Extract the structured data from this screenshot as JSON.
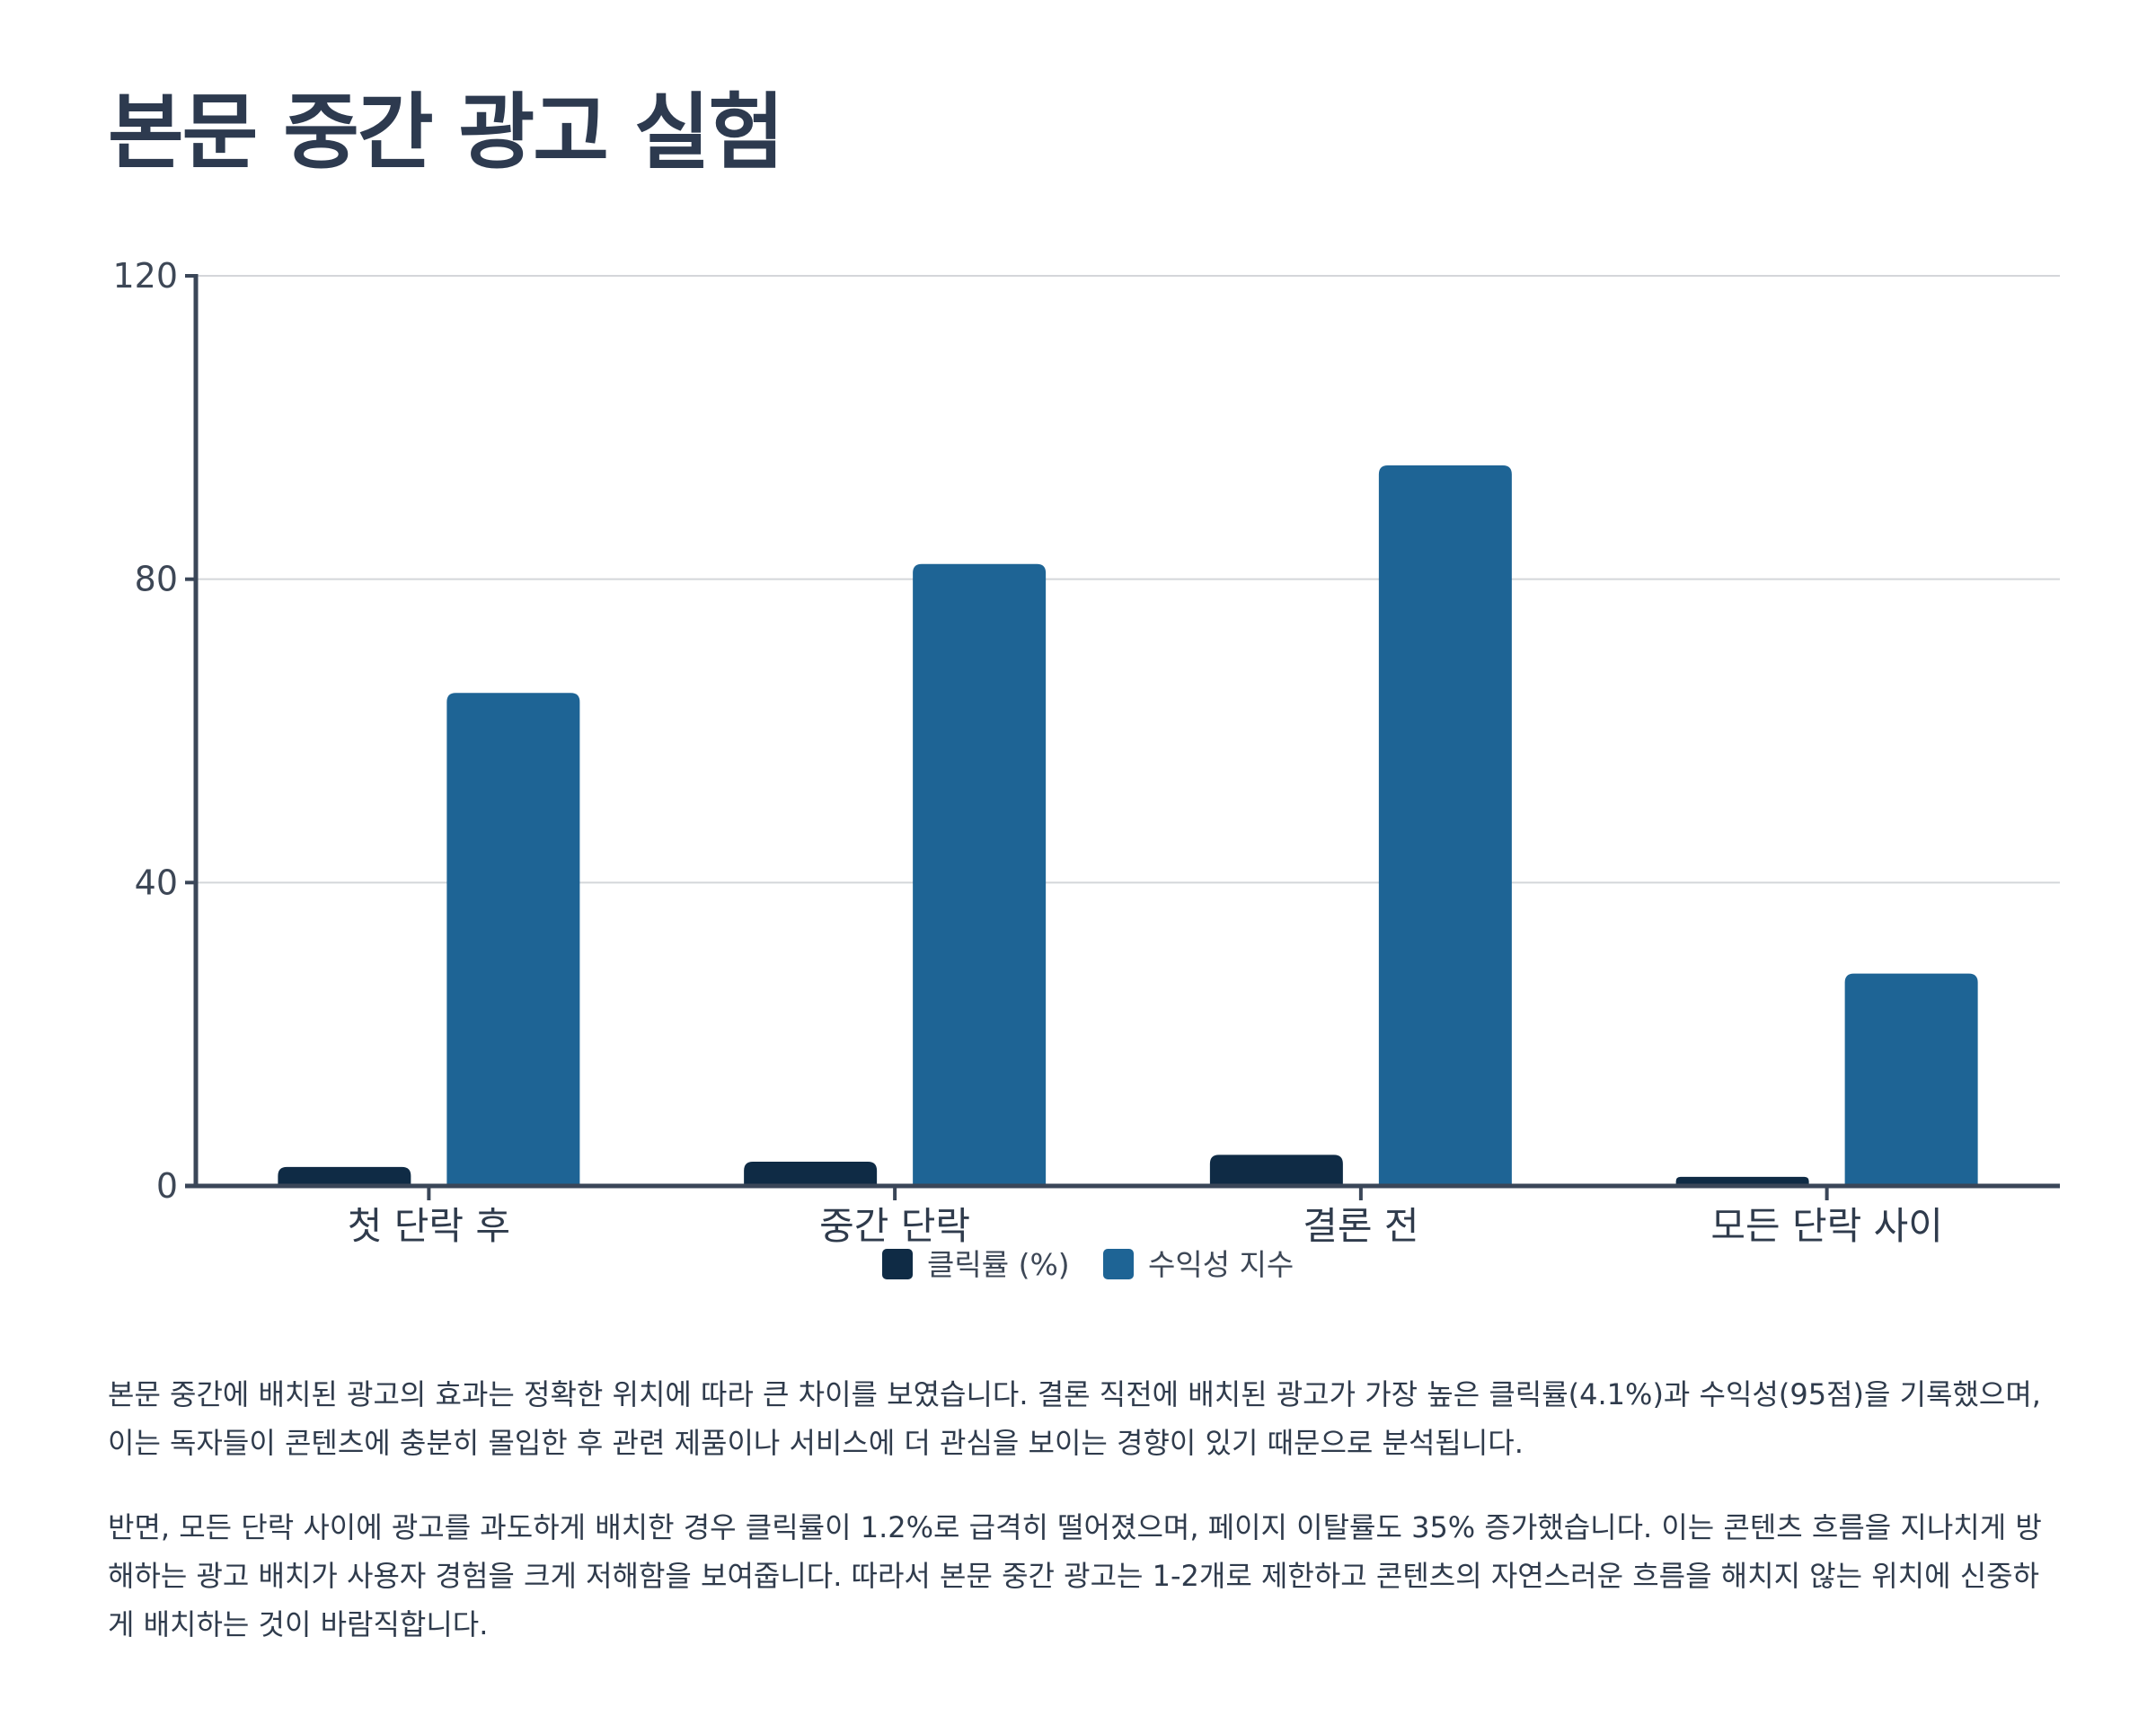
{
  "title": "본문 중간 광고 실험",
  "chart_data": {
    "type": "bar",
    "categories": [
      "첫 단락 후",
      "중간 단락",
      "결론 전",
      "모든 단락 사이"
    ],
    "series": [
      {
        "name": "클릭률 (%)",
        "values": [
          2.5,
          3.2,
          4.1,
          1.2
        ],
        "color": "#0f2b45"
      },
      {
        "name": "수익성 지수",
        "values": [
          65,
          82,
          95,
          28
        ],
        "color": "#1e6495"
      }
    ],
    "ylim": [
      0,
      120
    ],
    "yticks": [
      0,
      40,
      80,
      120
    ],
    "grid": true,
    "legend_position": "bottom-center"
  },
  "paragraphs": [
    "본문 중간에 배치된 광고의 효과는 정확한 위치에 따라 큰 차이를 보였습니다. 결론 직전에 배치된 광고가 가장 높은 클릭률(4.1%)과 수익성(95점)을 기록했으며, 이는 독자들이 콘텐츠에 충분히 몰입한 후 관련 제품이나 서비스에 더 관심을 보이는 경향이 있기 때문으로 분석됩니다.",
    "반면, 모든 단락 사이에 광고를 과도하게 배치한 경우 클릭률이 1.2%로 급격히 떨어졌으며, 페이지 이탈률도 35% 증가했습니다. 이는 콘텐츠 흐름을 지나치게 방해하는 광고 배치가 사용자 경험을 크게 저해함을 보여줍니다. 따라서 본문 중간 광고는 1-2개로 제한하고 콘텐츠의 자연스러운 흐름을 해치지 않는 위치에 신중하게 배치하는 것이 바람직합니다."
  ]
}
